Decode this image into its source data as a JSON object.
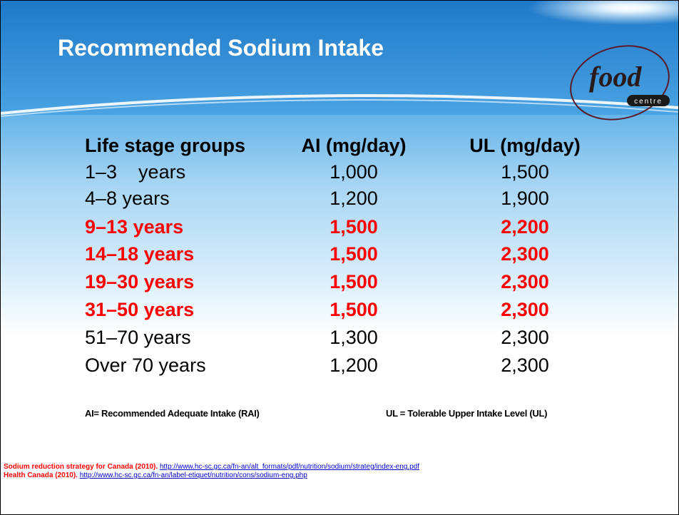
{
  "title": "Recommended Sodium Intake",
  "logo": {
    "word": "food",
    "sub": "centre"
  },
  "table": {
    "header": [
      "Life stage groups",
      "AI (mg/day)",
      "UL (mg/day)"
    ],
    "rows": [
      {
        "cells": [
          "1–3    years",
          "1,000",
          "1,500"
        ],
        "highlight": false
      },
      {
        "cells": [
          "4–8 years",
          "1,200",
          "1,900"
        ],
        "highlight": false
      },
      {
        "cells": [
          "9–13 years",
          "1,500",
          "2,200"
        ],
        "highlight": true
      },
      {
        "cells": [
          "14–18 years",
          "1,500",
          "2,300"
        ],
        "highlight": true
      },
      {
        "cells": [
          "19–30 years",
          "1,500",
          "2,300"
        ],
        "highlight": true
      },
      {
        "cells": [
          "31–50 years",
          "1,500",
          "2,300"
        ],
        "highlight": true
      },
      {
        "cells": [
          "51–70 years",
          "1,300",
          "2,300"
        ],
        "highlight": false
      },
      {
        "cells": [
          "Over 70 years",
          "1,200",
          "2,300"
        ],
        "highlight": false
      }
    ]
  },
  "notes": [
    "AI= Recommended Adequate Intake (RAI)",
    "UL = Tolerable Upper Intake Level (UL)"
  ],
  "references": [
    {
      "source": "Sodium reduction strategy for Canada (2010).",
      "url": "http://www.hc-sc.gc.ca/fn-an/alt_formats/pdf/nutrition/sodium/strateg/index-eng.pdf"
    },
    {
      "source": "Health Canada (2010).",
      "url": "http://www.hc-sc.gc.ca/fn-an/label-etiquet/nutrition/cons/sodium-eng.php"
    }
  ]
}
